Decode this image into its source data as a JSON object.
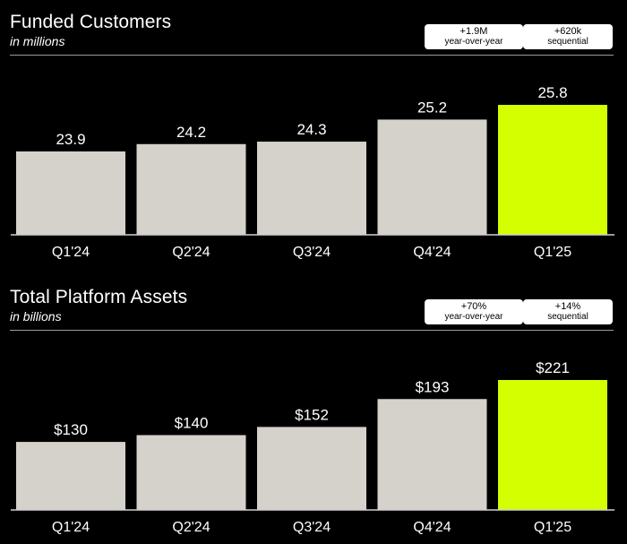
{
  "colors": {
    "background": "#000000",
    "bar": "#d5d1cb",
    "highlight": "#d4ff00",
    "text": "#ffffff"
  },
  "charts": [
    {
      "title": "Funded Customers",
      "subtitle": "in millions",
      "badges": [
        {
          "line1": "+1.9M",
          "line2": "year-over-year"
        },
        {
          "line1": "+620k",
          "line2": "sequential"
        }
      ]
    },
    {
      "title": "Total Platform Assets",
      "subtitle": "in billions",
      "badges": [
        {
          "line1": "+70%",
          "line2": "year-over-year"
        },
        {
          "line1": "+14%",
          "line2": "sequential"
        }
      ]
    }
  ],
  "chart_data": [
    {
      "type": "bar",
      "title": "Funded Customers",
      "subtitle": "in millions",
      "categories": [
        "Q1'24",
        "Q2'24",
        "Q3'24",
        "Q4'24",
        "Q1'25"
      ],
      "values": [
        23.9,
        24.2,
        24.3,
        25.2,
        25.8
      ],
      "labels": [
        "23.9",
        "24.2",
        "24.3",
        "25.2",
        "25.8"
      ],
      "highlight_index": 4,
      "ylim": [
        20.5,
        25.8
      ]
    },
    {
      "type": "bar",
      "title": "Total Platform Assets",
      "subtitle": "in billions",
      "categories": [
        "Q1'24",
        "Q2'24",
        "Q3'24",
        "Q4'24",
        "Q1'25"
      ],
      "values": [
        130,
        140,
        152,
        193,
        221
      ],
      "labels": [
        "$130",
        "$140",
        "$152",
        "$193",
        "$221"
      ],
      "highlight_index": 4,
      "ylim": [
        30,
        221
      ]
    }
  ]
}
